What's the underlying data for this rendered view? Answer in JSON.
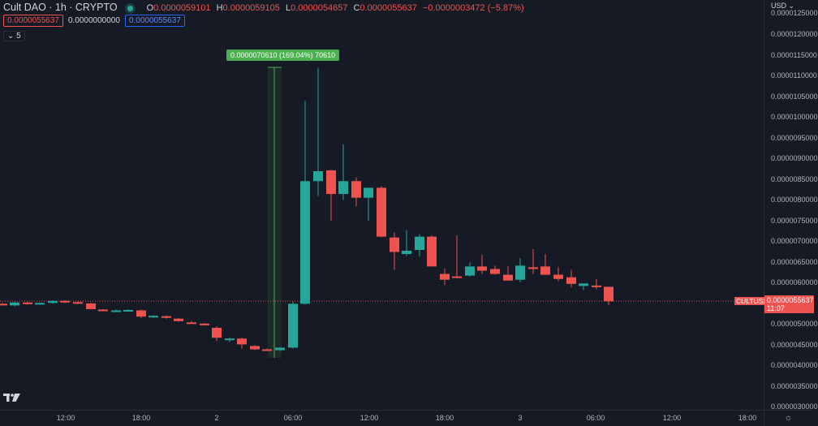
{
  "legend": {
    "symbol": "Cult DAO · 1h · CRYPTO",
    "open_label": "O",
    "open": "0.0000059101",
    "high_label": "H",
    "high": "0.0000059105",
    "low_label": "L",
    "low": "0.0000054657",
    "close_label": "C",
    "close": "0.0000055637",
    "change": "−0.0000003472 (−5.87%)",
    "status_icon": "market-status-dot"
  },
  "indicator_row": {
    "red_value": "0.0000055637",
    "plain_value": "0.0000000000",
    "blue_value": "0.0000055637"
  },
  "collapse_toggle": {
    "icon": "chevron-down-icon",
    "count": "5"
  },
  "measure_label": "0.0000070610 (169.04%) 70610",
  "price_axis": {
    "currency": "USD ⌄",
    "labels": [
      {
        "text": "0.0000125000",
        "y": 17
      },
      {
        "text": "0.0000120000",
        "y": 43
      },
      {
        "text": "0.0000115000",
        "y": 69
      },
      {
        "text": "0.0000110000",
        "y": 94
      },
      {
        "text": "0.0000105000",
        "y": 120
      },
      {
        "text": "0.0000100000",
        "y": 145
      },
      {
        "text": "0.0000095000",
        "y": 171
      },
      {
        "text": "0.0000090000",
        "y": 196
      },
      {
        "text": "0.0000085000",
        "y": 222
      },
      {
        "text": "0.0000080000",
        "y": 247
      },
      {
        "text": "0.0000075000",
        "y": 273
      },
      {
        "text": "0.0000070000",
        "y": 298
      },
      {
        "text": "0.0000065000",
        "y": 324
      },
      {
        "text": "0.0000060000",
        "y": 349
      },
      {
        "text": "0.0000050000",
        "y": 400
      },
      {
        "text": "0.0000045000",
        "y": 426
      },
      {
        "text": "0.0000040000",
        "y": 451
      },
      {
        "text": "0.0000035000",
        "y": 477
      },
      {
        "text": "0.0000030000",
        "y": 502
      }
    ],
    "current_price": "0.0000055637",
    "countdown": "11:07",
    "symbol_tag": "CULTUSD"
  },
  "time_axis": {
    "labels": [
      {
        "text": "12:00",
        "x": 81
      },
      {
        "text": "18:00",
        "x": 174
      },
      {
        "text": "2",
        "x": 267
      },
      {
        "text": "06:00",
        "x": 361
      },
      {
        "text": "12:00",
        "x": 455
      },
      {
        "text": "18:00",
        "x": 548
      },
      {
        "text": "3",
        "x": 641
      },
      {
        "text": "06:00",
        "x": 734
      },
      {
        "text": "12:00",
        "x": 828
      },
      {
        "text": "18:00",
        "x": 921
      }
    ]
  },
  "colors": {
    "up": "#26a69a",
    "down": "#ef5350",
    "bg": "#161a25",
    "measure": "#4caf50"
  },
  "chart_data": {
    "type": "candlestick",
    "title": "Cult DAO · 1h · CRYPTO",
    "y_unit": "USD",
    "ylim": [
      3e-06,
      1.25e-05
    ],
    "candles": [
      {
        "x": 3,
        "o": 5.5,
        "h": 5.52,
        "l": 5.46,
        "c": 5.48
      },
      {
        "x": 18,
        "o": 5.46,
        "h": 5.55,
        "l": 5.44,
        "c": 5.53
      },
      {
        "x": 34,
        "o": 5.53,
        "h": 5.55,
        "l": 5.48,
        "c": 5.5
      },
      {
        "x": 49,
        "o": 5.51,
        "h": 5.53,
        "l": 5.48,
        "c": 5.52
      },
      {
        "x": 65,
        "o": 5.52,
        "h": 5.58,
        "l": 5.5,
        "c": 5.57
      },
      {
        "x": 80,
        "o": 5.57,
        "h": 5.59,
        "l": 5.52,
        "c": 5.54
      },
      {
        "x": 96,
        "o": 5.54,
        "h": 5.56,
        "l": 5.49,
        "c": 5.51
      },
      {
        "x": 112,
        "o": 5.51,
        "h": 5.52,
        "l": 5.36,
        "c": 5.37
      },
      {
        "x": 127,
        "o": 5.36,
        "h": 5.37,
        "l": 5.32,
        "c": 5.33
      },
      {
        "x": 143,
        "o": 5.33,
        "h": 5.36,
        "l": 5.31,
        "c": 5.34
      },
      {
        "x": 158,
        "o": 5.33,
        "h": 5.37,
        "l": 5.31,
        "c": 5.35
      },
      {
        "x": 174,
        "o": 5.34,
        "h": 5.36,
        "l": 5.15,
        "c": 5.19
      },
      {
        "x": 189,
        "o": 5.17,
        "h": 5.22,
        "l": 5.16,
        "c": 5.21
      },
      {
        "x": 205,
        "o": 5.2,
        "h": 5.22,
        "l": 5.14,
        "c": 5.16
      },
      {
        "x": 220,
        "o": 5.14,
        "h": 5.16,
        "l": 5.07,
        "c": 5.08
      },
      {
        "x": 236,
        "o": 5.05,
        "h": 5.08,
        "l": 5.02,
        "c": 5.03
      },
      {
        "x": 252,
        "o": 5.02,
        "h": 5.04,
        "l": 4.99,
        "c": 5.0
      },
      {
        "x": 267,
        "o": 4.92,
        "h": 4.95,
        "l": 4.6,
        "c": 4.68
      },
      {
        "x": 283,
        "o": 4.62,
        "h": 4.68,
        "l": 4.58,
        "c": 4.66
      },
      {
        "x": 298,
        "o": 4.66,
        "h": 4.68,
        "l": 4.42,
        "c": 4.52
      },
      {
        "x": 314,
        "o": 4.48,
        "h": 4.5,
        "l": 4.38,
        "c": 4.4
      },
      {
        "x": 329,
        "o": 4.4,
        "h": 4.42,
        "l": 4.38,
        "c": 4.39
      },
      {
        "x": 345,
        "o": 4.38,
        "h": 4.45,
        "l": 4.36,
        "c": 4.44
      },
      {
        "x": 361,
        "o": 4.44,
        "h": 5.55,
        "l": 4.42,
        "c": 5.5
      },
      {
        "x": 376,
        "o": 5.5,
        "h": 10.4,
        "l": 5.48,
        "c": 8.46
      },
      {
        "x": 392,
        "o": 8.46,
        "h": 11.2,
        "l": 8.1,
        "c": 8.7
      },
      {
        "x": 408,
        "o": 8.72,
        "h": 8.74,
        "l": 7.5,
        "c": 8.15
      },
      {
        "x": 423,
        "o": 8.15,
        "h": 9.35,
        "l": 8.0,
        "c": 8.46
      },
      {
        "x": 439,
        "o": 8.46,
        "h": 8.55,
        "l": 7.85,
        "c": 8.06
      },
      {
        "x": 454,
        "o": 8.06,
        "h": 8.22,
        "l": 7.5,
        "c": 8.3
      },
      {
        "x": 470,
        "o": 8.3,
        "h": 8.34,
        "l": 7.1,
        "c": 7.12
      },
      {
        "x": 486,
        "o": 7.1,
        "h": 7.22,
        "l": 6.32,
        "c": 6.75
      },
      {
        "x": 501,
        "o": 6.7,
        "h": 7.28,
        "l": 6.65,
        "c": 6.78
      },
      {
        "x": 517,
        "o": 6.8,
        "h": 7.18,
        "l": 6.65,
        "c": 7.12
      },
      {
        "x": 532,
        "o": 7.12,
        "h": 7.15,
        "l": 6.4,
        "c": 6.4
      },
      {
        "x": 548,
        "o": 6.22,
        "h": 6.35,
        "l": 5.95,
        "c": 6.08
      },
      {
        "x": 563,
        "o": 6.16,
        "h": 7.15,
        "l": 6.12,
        "c": 6.14
      },
      {
        "x": 579,
        "o": 6.18,
        "h": 6.5,
        "l": 6.15,
        "c": 6.4
      },
      {
        "x": 594,
        "o": 6.4,
        "h": 6.68,
        "l": 6.22,
        "c": 6.3
      },
      {
        "x": 610,
        "o": 6.34,
        "h": 6.42,
        "l": 6.2,
        "c": 6.22
      },
      {
        "x": 626,
        "o": 6.2,
        "h": 6.4,
        "l": 6.05,
        "c": 6.06
      },
      {
        "x": 641,
        "o": 6.08,
        "h": 6.6,
        "l": 6.02,
        "c": 6.42
      },
      {
        "x": 657,
        "o": 6.38,
        "h": 6.82,
        "l": 6.22,
        "c": 6.35
      },
      {
        "x": 672,
        "o": 6.4,
        "h": 6.7,
        "l": 6.25,
        "c": 6.2
      },
      {
        "x": 688,
        "o": 6.2,
        "h": 6.38,
        "l": 6.05,
        "c": 6.1
      },
      {
        "x": 704,
        "o": 6.14,
        "h": 6.32,
        "l": 5.9,
        "c": 5.98
      },
      {
        "x": 719,
        "o": 5.93,
        "h": 5.99,
        "l": 5.83,
        "c": 5.99
      },
      {
        "x": 735,
        "o": 5.94,
        "h": 6.1,
        "l": 5.85,
        "c": 5.93
      },
      {
        "x": 750,
        "o": 5.91,
        "h": 5.91,
        "l": 5.47,
        "c": 5.56
      }
    ],
    "price_scale_multiplier": "1e-6"
  }
}
